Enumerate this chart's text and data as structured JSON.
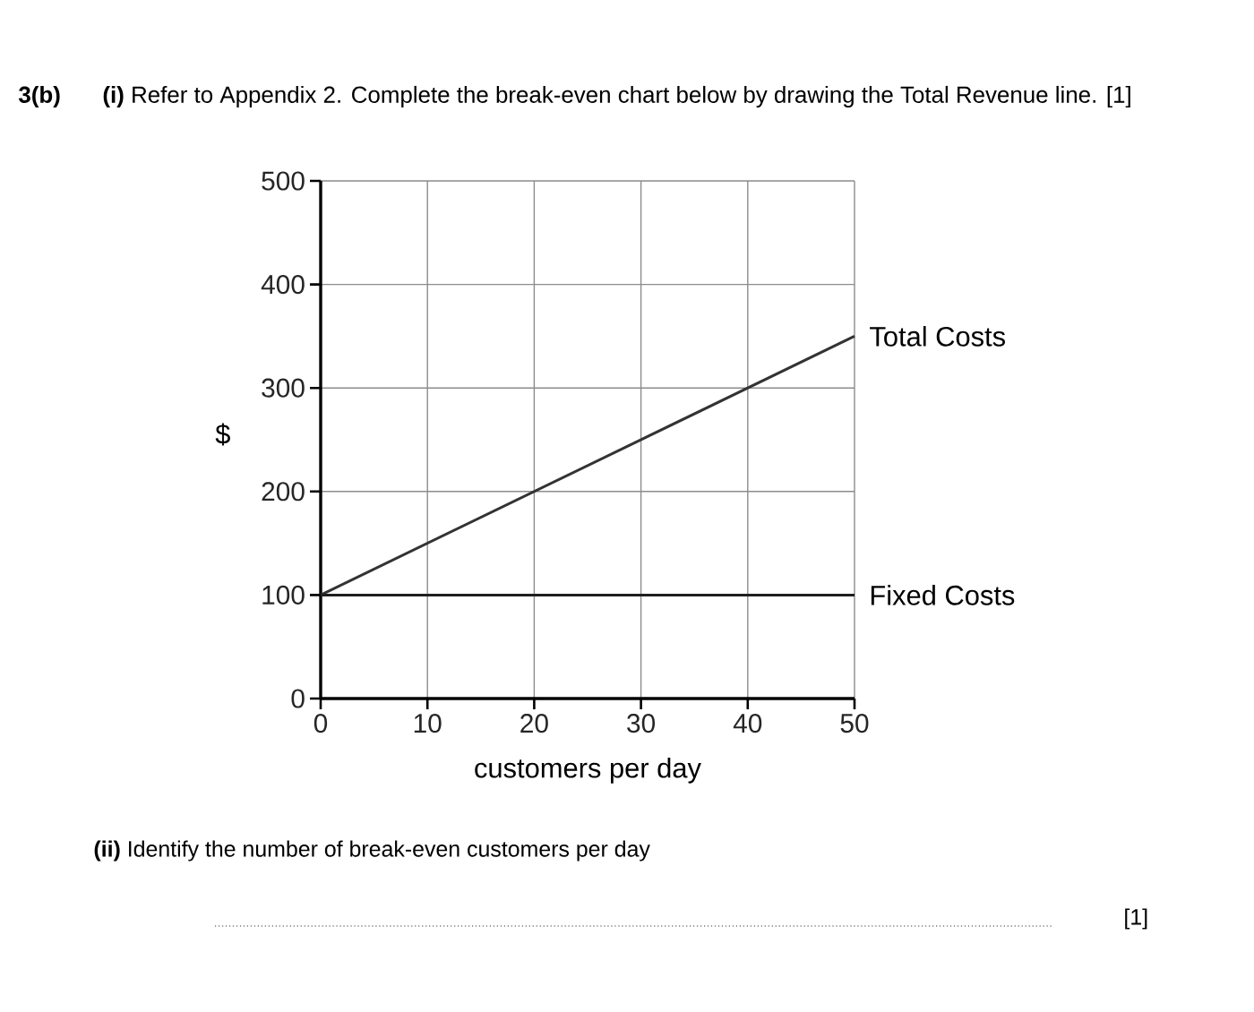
{
  "chart_data": {
    "type": "line",
    "title": "**(i)** Refer to Appendix 2. Complete the break-even chart below by drawing the Total Revenue line. [1]",
    "xlabel": "customers per day",
    "ylabel": "$",
    "x": [
      0,
      50
    ],
    "series": [
      {
        "name": "Total Costs",
        "color": "#333333",
        "values": [
          100,
          350
        ]
      },
      {
        "name": "Fixed Costs",
        "color": "#1f1f1f",
        "values": [
          100,
          100
        ]
      }
    ],
    "xlim": [
      0,
      50
    ],
    "ylim": [
      0,
      500
    ],
    "xticks": [
      0,
      10,
      20,
      30,
      40,
      50
    ],
    "yticks": [
      0,
      100,
      200,
      300,
      400,
      500
    ],
    "grid": true,
    "annotations": [
      "**3(b)**",
      "**(ii)** Identify the number of break-even customers per day",
      "[1]"
    ]
  }
}
